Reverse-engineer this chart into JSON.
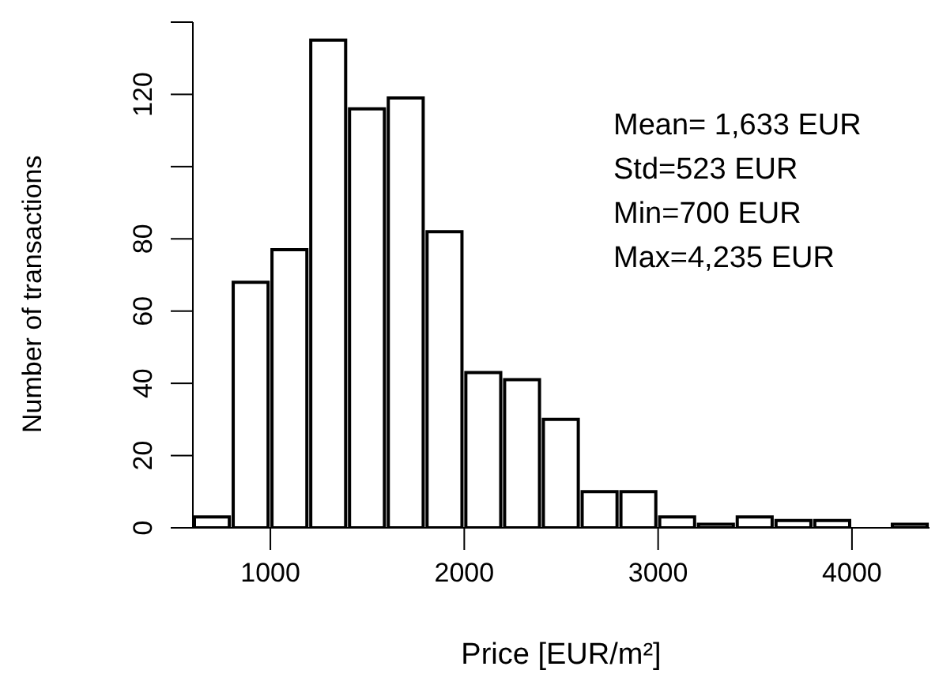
{
  "chart_data": {
    "type": "histogram",
    "xlabel": "Price [EUR/m²]",
    "ylabel": "Number of transactions",
    "bins": [
      600,
      800,
      1000,
      1200,
      1400,
      1600,
      1800,
      2000,
      2200,
      2400,
      2600,
      2800,
      3000,
      3200,
      3400,
      3600,
      3800,
      4000,
      4200,
      4400
    ],
    "values": [
      3,
      68,
      77,
      135,
      116,
      119,
      82,
      43,
      41,
      30,
      10,
      10,
      3,
      1,
      3,
      2,
      2,
      0,
      1
    ],
    "color": "#ffffff",
    "xlim": [
      600,
      4400
    ],
    "xticks": [
      1000,
      2000,
      3000,
      4000
    ],
    "ylim": [
      0,
      140
    ],
    "yticks": [
      0,
      20,
      40,
      60,
      80,
      {
        "value": 100,
        "label": null
      },
      120,
      {
        "value": 140,
        "label": null
      }
    ],
    "annotations": [
      "Mean= 1,633 EUR",
      "Std=523 EUR",
      "Min=700 EUR",
      "Max=4,235 EUR"
    ],
    "grid": false,
    "legend": false
  }
}
